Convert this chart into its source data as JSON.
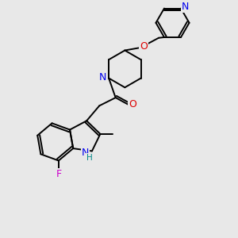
{
  "bg_color": "#e8e8e8",
  "bond_color": "#000000",
  "bond_width": 1.4,
  "atom_colors": {
    "N": "#0000ee",
    "O": "#dd0000",
    "F": "#cc00cc",
    "H": "#008888",
    "C": "#000000"
  },
  "font_size": 8.5
}
